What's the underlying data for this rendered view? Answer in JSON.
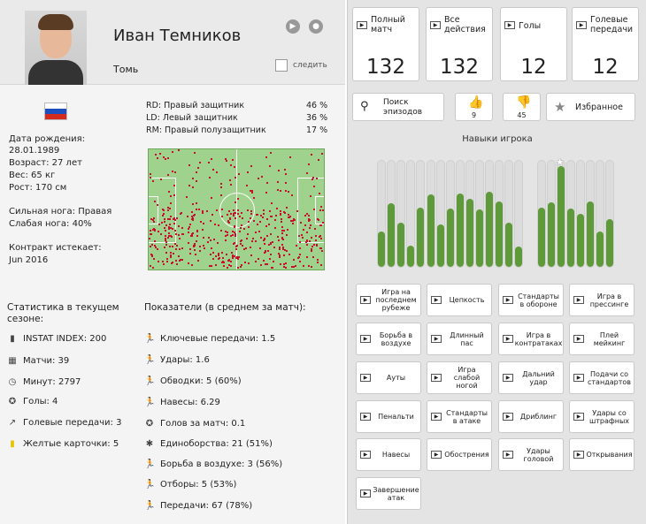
{
  "player": {
    "name": "Иван Темников",
    "team": "Томь",
    "follow_label": "следить",
    "birth_label": "Дата рождения:",
    "birth_date": "28.01.1989",
    "age": "Возраст: 27 лет",
    "weight": "Вес: 65 кг",
    "height": "Рост: 170 см",
    "strong_foot": "Сильная нога: Правая",
    "weak_foot": "Слабая нога: 40%",
    "contract_label": "Контракт истекает:",
    "contract_date": "Jun 2016"
  },
  "positions": [
    {
      "label": "RD: Правый защитник",
      "pct": "46 %"
    },
    {
      "label": "LD: Левый защитник",
      "pct": "36 %"
    },
    {
      "label": "RM: Правый полузащитник",
      "pct": "17 %"
    }
  ],
  "season_stats": {
    "title": "Статистика в текущем сезоне:",
    "items": [
      {
        "icon": "bar-chart-icon",
        "text": "INSTAT INDEX: 200"
      },
      {
        "icon": "calendar-icon",
        "text": "Матчи: 39"
      },
      {
        "icon": "clock-icon",
        "text": "Минут: 2797"
      },
      {
        "icon": "ball-icon",
        "text": "Голы: 4"
      },
      {
        "icon": "assist-icon",
        "text": "Голевые передачи: 3"
      },
      {
        "icon": "yellow-card-icon",
        "text": "Желтые карточки: 5"
      }
    ]
  },
  "avg_stats": {
    "title": "Показатели (в среднем за матч):",
    "items": [
      {
        "icon": "key-pass-icon",
        "text": "Ключевые передачи: 1.5"
      },
      {
        "icon": "shot-icon",
        "text": "Удары: 1.6"
      },
      {
        "icon": "dribble-icon",
        "text": "Обводки: 5 (60%)"
      },
      {
        "icon": "cross-icon",
        "text": "Навесы: 6.29"
      },
      {
        "icon": "ball-icon",
        "text": "Голов за матч: 0.1"
      },
      {
        "icon": "duel-icon",
        "text": "Единоборства: 21 (51%)"
      },
      {
        "icon": "aerial-icon",
        "text": "Борьба в воздухе: 3 (56%)"
      },
      {
        "icon": "tackle-icon",
        "text": "Отборы: 5 (53%)"
      },
      {
        "icon": "pass-icon",
        "text": "Передачи: 67 (78%)"
      }
    ]
  },
  "tiles": [
    {
      "label": "Полный матч",
      "count": "132"
    },
    {
      "label": "Все действия",
      "count": "132"
    },
    {
      "label": "Голы",
      "count": "12"
    },
    {
      "label": "Голевые передачи",
      "count": "12"
    }
  ],
  "search_label": "Поиск эпизодов",
  "likes_count": "9",
  "dislikes_count": "45",
  "favorites_label": "Избранное",
  "skills": {
    "title": "Навыки игрока",
    "levels": [
      0.33,
      0.6,
      0.42,
      0.2,
      0.56,
      0.68,
      0.4,
      0.55,
      0.69,
      0.64,
      0.54,
      0.71,
      0.62,
      0.42,
      0.19,
      0.56,
      0.61,
      0.95,
      0.55,
      0.5,
      0.62,
      0.33,
      0.45
    ]
  },
  "skill_buttons": [
    "Игра на последнем рубеже",
    "Цепкость",
    "Стандарты в обороне",
    "Игра в прессинге",
    "Борьба в воздухе",
    "Длинный пас",
    "Игра в контратаках",
    "Плей мейкинг",
    "Ауты",
    "Игра слабой ногой",
    "Дальний удар",
    "Подачи со стандартов",
    "Пенальти",
    "Стандарты в атаке",
    "Дриблинг",
    "Удары со штрафных",
    "Навесы",
    "Обострения",
    "Удары головой",
    "Открывания",
    "Завершение атак"
  ],
  "colors": {
    "bar_fill": "#5e9a3a",
    "heat_dot": "#c8102e",
    "pitch": "#9fd28c"
  }
}
